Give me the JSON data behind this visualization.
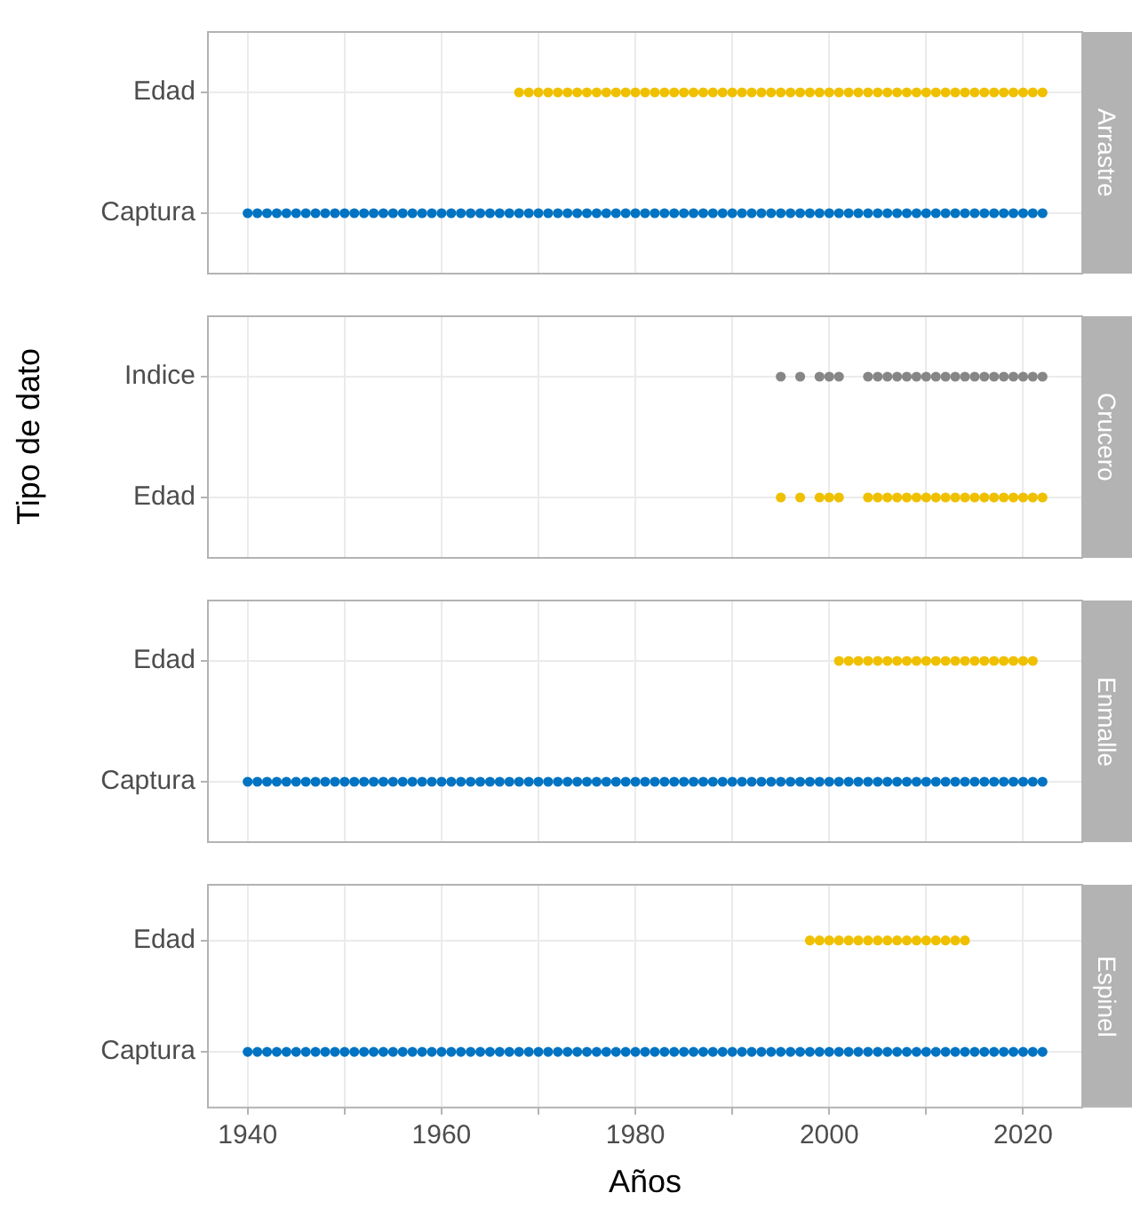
{
  "chart_data": [
    {
      "type": "scatter",
      "title": "Arrastre",
      "orientation": "horizontal",
      "categories": [
        "Edad",
        "Captura"
      ],
      "xlim": [
        1935.9,
        2026.1
      ],
      "xticks": [
        1940,
        {
          "value": 1950,
          "label": null
        },
        1960,
        {
          "value": 1970,
          "label": null
        },
        1980,
        {
          "value": 1990,
          "label": null
        },
        2000,
        {
          "value": 2010,
          "label": null
        },
        2020
      ],
      "grid": true,
      "marker": "circle",
      "tick_labels": "y",
      "series": [
        {
          "color": "#efc000",
          "values": [
            1968,
            1969,
            1970,
            1971,
            1972,
            1973,
            1974,
            1975,
            1976,
            1977,
            1978,
            1979,
            1980,
            1981,
            1982,
            1983,
            1984,
            1985,
            1986,
            1987,
            1988,
            1989,
            1990,
            1991,
            1992,
            1993,
            1994,
            1995,
            1996,
            1997,
            1998,
            1999,
            2000,
            2001,
            2002,
            2003,
            2004,
            2005,
            2006,
            2007,
            2008,
            2009,
            2010,
            2011,
            2012,
            2013,
            2014,
            2015,
            2016,
            2017,
            2018,
            2019,
            2020,
            2021,
            2022
          ],
          "x": [
            "Edad",
            "Edad",
            "Edad",
            "Edad",
            "Edad",
            "Edad",
            "Edad",
            "Edad",
            "Edad",
            "Edad",
            "Edad",
            "Edad",
            "Edad",
            "Edad",
            "Edad",
            "Edad",
            "Edad",
            "Edad",
            "Edad",
            "Edad",
            "Edad",
            "Edad",
            "Edad",
            "Edad",
            "Edad",
            "Edad",
            "Edad",
            "Edad",
            "Edad",
            "Edad",
            "Edad",
            "Edad",
            "Edad",
            "Edad",
            "Edad",
            "Edad",
            "Edad",
            "Edad",
            "Edad",
            "Edad",
            "Edad",
            "Edad",
            "Edad",
            "Edad",
            "Edad",
            "Edad",
            "Edad",
            "Edad",
            "Edad",
            "Edad",
            "Edad",
            "Edad",
            "Edad",
            "Edad",
            "Edad"
          ]
        },
        {
          "color": "#0073c2",
          "values": [
            1940,
            1941,
            1942,
            1943,
            1944,
            1945,
            1946,
            1947,
            1948,
            1949,
            1950,
            1951,
            1952,
            1953,
            1954,
            1955,
            1956,
            1957,
            1958,
            1959,
            1960,
            1961,
            1962,
            1963,
            1964,
            1965,
            1966,
            1967,
            1968,
            1969,
            1970,
            1971,
            1972,
            1973,
            1974,
            1975,
            1976,
            1977,
            1978,
            1979,
            1980,
            1981,
            1982,
            1983,
            1984,
            1985,
            1986,
            1987,
            1988,
            1989,
            1990,
            1991,
            1992,
            1993,
            1994,
            1995,
            1996,
            1997,
            1998,
            1999,
            2000,
            2001,
            2002,
            2003,
            2004,
            2005,
            2006,
            2007,
            2008,
            2009,
            2010,
            2011,
            2012,
            2013,
            2014,
            2015,
            2016,
            2017,
            2018,
            2019,
            2020,
            2021,
            2022
          ],
          "x": [
            "Captura",
            "Captura",
            "Captura",
            "Captura",
            "Captura",
            "Captura",
            "Captura",
            "Captura",
            "Captura",
            "Captura",
            "Captura",
            "Captura",
            "Captura",
            "Captura",
            "Captura",
            "Captura",
            "Captura",
            "Captura",
            "Captura",
            "Captura",
            "Captura",
            "Captura",
            "Captura",
            "Captura",
            "Captura",
            "Captura",
            "Captura",
            "Captura",
            "Captura",
            "Captura",
            "Captura",
            "Captura",
            "Captura",
            "Captura",
            "Captura",
            "Captura",
            "Captura",
            "Captura",
            "Captura",
            "Captura",
            "Captura",
            "Captura",
            "Captura",
            "Captura",
            "Captura",
            "Captura",
            "Captura",
            "Captura",
            "Captura",
            "Captura",
            "Captura",
            "Captura",
            "Captura",
            "Captura",
            "Captura",
            "Captura",
            "Captura",
            "Captura",
            "Captura",
            "Captura",
            "Captura",
            "Captura",
            "Captura",
            "Captura",
            "Captura",
            "Captura",
            "Captura",
            "Captura",
            "Captura",
            "Captura",
            "Captura",
            "Captura",
            "Captura",
            "Captura",
            "Captura",
            "Captura",
            "Captura",
            "Captura",
            "Captura",
            "Captura",
            "Captura",
            "Captura",
            "Captura"
          ]
        }
      ]
    },
    {
      "type": "scatter",
      "title": "Crucero",
      "ylabel": "Tipo de dato",
      "orientation": "horizontal",
      "categories": [
        "Indice",
        "Edad"
      ],
      "xlim": [
        1935.9,
        2026.1
      ],
      "xticks": [
        1940,
        {
          "value": 1950,
          "label": null
        },
        1960,
        {
          "value": 1970,
          "label": null
        },
        1980,
        {
          "value": 1990,
          "label": null
        },
        2000,
        {
          "value": 2010,
          "label": null
        },
        2020
      ],
      "grid": true,
      "marker": "circle",
      "tick_labels": "y",
      "series": [
        {
          "color": "#868686",
          "values": [
            1995,
            1997,
            1999,
            2000,
            2001,
            2004,
            2005,
            2006,
            2007,
            2008,
            2009,
            2010,
            2011,
            2012,
            2013,
            2014,
            2015,
            2016,
            2017,
            2018,
            2019,
            2020,
            2021,
            2022
          ],
          "x": [
            "Indice",
            "Indice",
            "Indice",
            "Indice",
            "Indice",
            "Indice",
            "Indice",
            "Indice",
            "Indice",
            "Indice",
            "Indice",
            "Indice",
            "Indice",
            "Indice",
            "Indice",
            "Indice",
            "Indice",
            "Indice",
            "Indice",
            "Indice",
            "Indice",
            "Indice",
            "Indice",
            "Indice"
          ]
        },
        {
          "color": "#efc000",
          "values": [
            1995,
            1997,
            1999,
            2000,
            2001,
            2004,
            2005,
            2006,
            2007,
            2008,
            2009,
            2010,
            2011,
            2012,
            2013,
            2014,
            2015,
            2016,
            2017,
            2018,
            2019,
            2020,
            2021,
            2022
          ],
          "x": [
            "Edad",
            "Edad",
            "Edad",
            "Edad",
            "Edad",
            "Edad",
            "Edad",
            "Edad",
            "Edad",
            "Edad",
            "Edad",
            "Edad",
            "Edad",
            "Edad",
            "Edad",
            "Edad",
            "Edad",
            "Edad",
            "Edad",
            "Edad",
            "Edad",
            "Edad",
            "Edad",
            "Edad"
          ]
        }
      ]
    },
    {
      "type": "scatter",
      "title": "Enmalle",
      "orientation": "horizontal",
      "categories": [
        "Edad",
        "Captura"
      ],
      "xlim": [
        1935.9,
        2026.1
      ],
      "xticks": [
        1940,
        {
          "value": 1950,
          "label": null
        },
        1960,
        {
          "value": 1970,
          "label": null
        },
        1980,
        {
          "value": 1990,
          "label": null
        },
        2000,
        {
          "value": 2010,
          "label": null
        },
        2020
      ],
      "grid": true,
      "marker": "circle",
      "tick_labels": "y",
      "series": [
        {
          "color": "#efc000",
          "values": [
            2001,
            2002,
            2003,
            2004,
            2005,
            2006,
            2007,
            2008,
            2009,
            2010,
            2011,
            2012,
            2013,
            2014,
            2015,
            2016,
            2017,
            2018,
            2019,
            2020,
            2021
          ],
          "x": [
            "Edad",
            "Edad",
            "Edad",
            "Edad",
            "Edad",
            "Edad",
            "Edad",
            "Edad",
            "Edad",
            "Edad",
            "Edad",
            "Edad",
            "Edad",
            "Edad",
            "Edad",
            "Edad",
            "Edad",
            "Edad",
            "Edad",
            "Edad",
            "Edad"
          ]
        },
        {
          "color": "#0073c2",
          "values": [
            1940,
            1941,
            1942,
            1943,
            1944,
            1945,
            1946,
            1947,
            1948,
            1949,
            1950,
            1951,
            1952,
            1953,
            1954,
            1955,
            1956,
            1957,
            1958,
            1959,
            1960,
            1961,
            1962,
            1963,
            1964,
            1965,
            1966,
            1967,
            1968,
            1969,
            1970,
            1971,
            1972,
            1973,
            1974,
            1975,
            1976,
            1977,
            1978,
            1979,
            1980,
            1981,
            1982,
            1983,
            1984,
            1985,
            1986,
            1987,
            1988,
            1989,
            1990,
            1991,
            1992,
            1993,
            1994,
            1995,
            1996,
            1997,
            1998,
            1999,
            2000,
            2001,
            2002,
            2003,
            2004,
            2005,
            2006,
            2007,
            2008,
            2009,
            2010,
            2011,
            2012,
            2013,
            2014,
            2015,
            2016,
            2017,
            2018,
            2019,
            2020,
            2021,
            2022
          ],
          "x": [
            "Captura",
            "Captura",
            "Captura",
            "Captura",
            "Captura",
            "Captura",
            "Captura",
            "Captura",
            "Captura",
            "Captura",
            "Captura",
            "Captura",
            "Captura",
            "Captura",
            "Captura",
            "Captura",
            "Captura",
            "Captura",
            "Captura",
            "Captura",
            "Captura",
            "Captura",
            "Captura",
            "Captura",
            "Captura",
            "Captura",
            "Captura",
            "Captura",
            "Captura",
            "Captura",
            "Captura",
            "Captura",
            "Captura",
            "Captura",
            "Captura",
            "Captura",
            "Captura",
            "Captura",
            "Captura",
            "Captura",
            "Captura",
            "Captura",
            "Captura",
            "Captura",
            "Captura",
            "Captura",
            "Captura",
            "Captura",
            "Captura",
            "Captura",
            "Captura",
            "Captura",
            "Captura",
            "Captura",
            "Captura",
            "Captura",
            "Captura",
            "Captura",
            "Captura",
            "Captura",
            "Captura",
            "Captura",
            "Captura",
            "Captura",
            "Captura",
            "Captura",
            "Captura",
            "Captura",
            "Captura",
            "Captura",
            "Captura",
            "Captura",
            "Captura",
            "Captura",
            "Captura",
            "Captura",
            "Captura",
            "Captura",
            "Captura",
            "Captura",
            "Captura",
            "Captura",
            "Captura"
          ]
        }
      ]
    },
    {
      "type": "scatter",
      "title": "Espinel",
      "xlabel": "Años",
      "orientation": "horizontal",
      "categories": [
        "Edad",
        "Captura"
      ],
      "xlim": [
        1935.9,
        2026.1
      ],
      "xticks": [
        1940,
        {
          "value": 1950,
          "label": null
        },
        1960,
        {
          "value": 1970,
          "label": null
        },
        1980,
        {
          "value": 1990,
          "label": null
        },
        2000,
        {
          "value": 2010,
          "label": null
        },
        2020
      ],
      "grid": true,
      "marker": "circle",
      "series": [
        {
          "color": "#efc000",
          "values": [
            1998,
            1999,
            2000,
            2001,
            2002,
            2003,
            2004,
            2005,
            2006,
            2007,
            2008,
            2009,
            2010,
            2011,
            2012,
            2013,
            2014
          ],
          "x": [
            "Edad",
            "Edad",
            "Edad",
            "Edad",
            "Edad",
            "Edad",
            "Edad",
            "Edad",
            "Edad",
            "Edad",
            "Edad",
            "Edad",
            "Edad",
            "Edad",
            "Edad",
            "Edad",
            "Edad"
          ]
        },
        {
          "color": "#0073c2",
          "values": [
            1940,
            1941,
            1942,
            1943,
            1944,
            1945,
            1946,
            1947,
            1948,
            1949,
            1950,
            1951,
            1952,
            1953,
            1954,
            1955,
            1956,
            1957,
            1958,
            1959,
            1960,
            1961,
            1962,
            1963,
            1964,
            1965,
            1966,
            1967,
            1968,
            1969,
            1970,
            1971,
            1972,
            1973,
            1974,
            1975,
            1976,
            1977,
            1978,
            1979,
            1980,
            1981,
            1982,
            1983,
            1984,
            1985,
            1986,
            1987,
            1988,
            1989,
            1990,
            1991,
            1992,
            1993,
            1994,
            1995,
            1996,
            1997,
            1998,
            1999,
            2000,
            2001,
            2002,
            2003,
            2004,
            2005,
            2006,
            2007,
            2008,
            2009,
            2010,
            2011,
            2012,
            2013,
            2014,
            2015,
            2016,
            2017,
            2018,
            2019,
            2020,
            2021,
            2022
          ],
          "x": [
            "Captura",
            "Captura",
            "Captura",
            "Captura",
            "Captura",
            "Captura",
            "Captura",
            "Captura",
            "Captura",
            "Captura",
            "Captura",
            "Captura",
            "Captura",
            "Captura",
            "Captura",
            "Captura",
            "Captura",
            "Captura",
            "Captura",
            "Captura",
            "Captura",
            "Captura",
            "Captura",
            "Captura",
            "Captura",
            "Captura",
            "Captura",
            "Captura",
            "Captura",
            "Captura",
            "Captura",
            "Captura",
            "Captura",
            "Captura",
            "Captura",
            "Captura",
            "Captura",
            "Captura",
            "Captura",
            "Captura",
            "Captura",
            "Captura",
            "Captura",
            "Captura",
            "Captura",
            "Captura",
            "Captura",
            "Captura",
            "Captura",
            "Captura",
            "Captura",
            "Captura",
            "Captura",
            "Captura",
            "Captura",
            "Captura",
            "Captura",
            "Captura",
            "Captura",
            "Captura",
            "Captura",
            "Captura",
            "Captura",
            "Captura",
            "Captura",
            "Captura",
            "Captura",
            "Captura",
            "Captura",
            "Captura",
            "Captura",
            "Captura",
            "Captura",
            "Captura",
            "Captura",
            "Captura",
            "Captura",
            "Captura",
            "Captura",
            "Captura",
            "Captura",
            "Captura",
            "Captura"
          ]
        }
      ]
    }
  ]
}
